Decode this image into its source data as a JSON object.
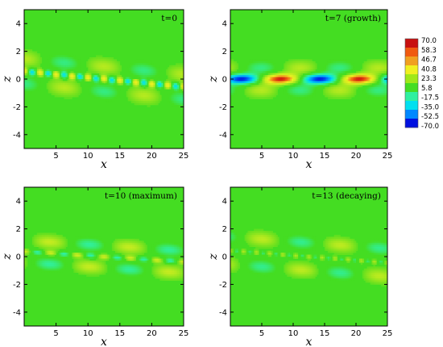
{
  "chart_data": {
    "type": "heatmap",
    "field": "contour",
    "colorbar": {
      "ticks": [
        "70.0",
        "58.3",
        "46.7",
        "40.8",
        "23.3",
        "5.8",
        "-17.5",
        "-35.0",
        "-52.5",
        "-70.0"
      ],
      "range": [
        -70.0,
        70.0
      ],
      "colors": [
        "#0010e0",
        "#0088ff",
        "#00e0f0",
        "#30f0a0",
        "#44dd22",
        "#a0e818",
        "#f0f020",
        "#f0a020",
        "#f05a10",
        "#c81010"
      ]
    },
    "panels": [
      {
        "id": "p1",
        "title": "t=0",
        "xlabel": "x",
        "ylabel": "z",
        "xlim": [
          0,
          25
        ],
        "ylim": [
          -5,
          5
        ],
        "xticks": [
          "5",
          "10",
          "15",
          "20",
          "25"
        ],
        "yticks": [
          "4",
          "2",
          "0",
          "-2",
          "-4"
        ],
        "mode": "initial",
        "wavelength": 12.5,
        "tilt": -0.045
      },
      {
        "id": "p2",
        "title": "t=7 (growth)",
        "xlabel": "x",
        "ylabel": "z",
        "xlim": [
          0,
          25
        ],
        "ylim": [
          -5,
          5
        ],
        "xticks": [
          "5",
          "10",
          "15",
          "20",
          "25"
        ],
        "yticks": [
          "4",
          "2",
          "0",
          "-2",
          "-4"
        ],
        "mode": "growth",
        "wavelength": 12.5,
        "tilt": 0
      },
      {
        "id": "p3",
        "title": "t=10 (maximum)",
        "xlabel": "x",
        "ylabel": "z",
        "xlim": [
          0,
          25
        ],
        "ylim": [
          -5,
          5
        ],
        "xticks": [
          "5",
          "10",
          "15",
          "20",
          "25"
        ],
        "yticks": [
          "4",
          "2",
          "0",
          "-2",
          "-4"
        ],
        "mode": "maximum",
        "wavelength": 12.5,
        "tilt": -0.03
      },
      {
        "id": "p4",
        "title": "t=13 (decaying)",
        "xlabel": "x",
        "ylabel": "z",
        "xlim": [
          0,
          25
        ],
        "ylim": [
          -5,
          5
        ],
        "xticks": [
          "5",
          "10",
          "15",
          "20",
          "25"
        ],
        "yticks": [
          "4",
          "2",
          "0",
          "-2",
          "-4"
        ],
        "mode": "decaying",
        "wavelength": 12.5,
        "tilt": -0.035
      }
    ]
  }
}
